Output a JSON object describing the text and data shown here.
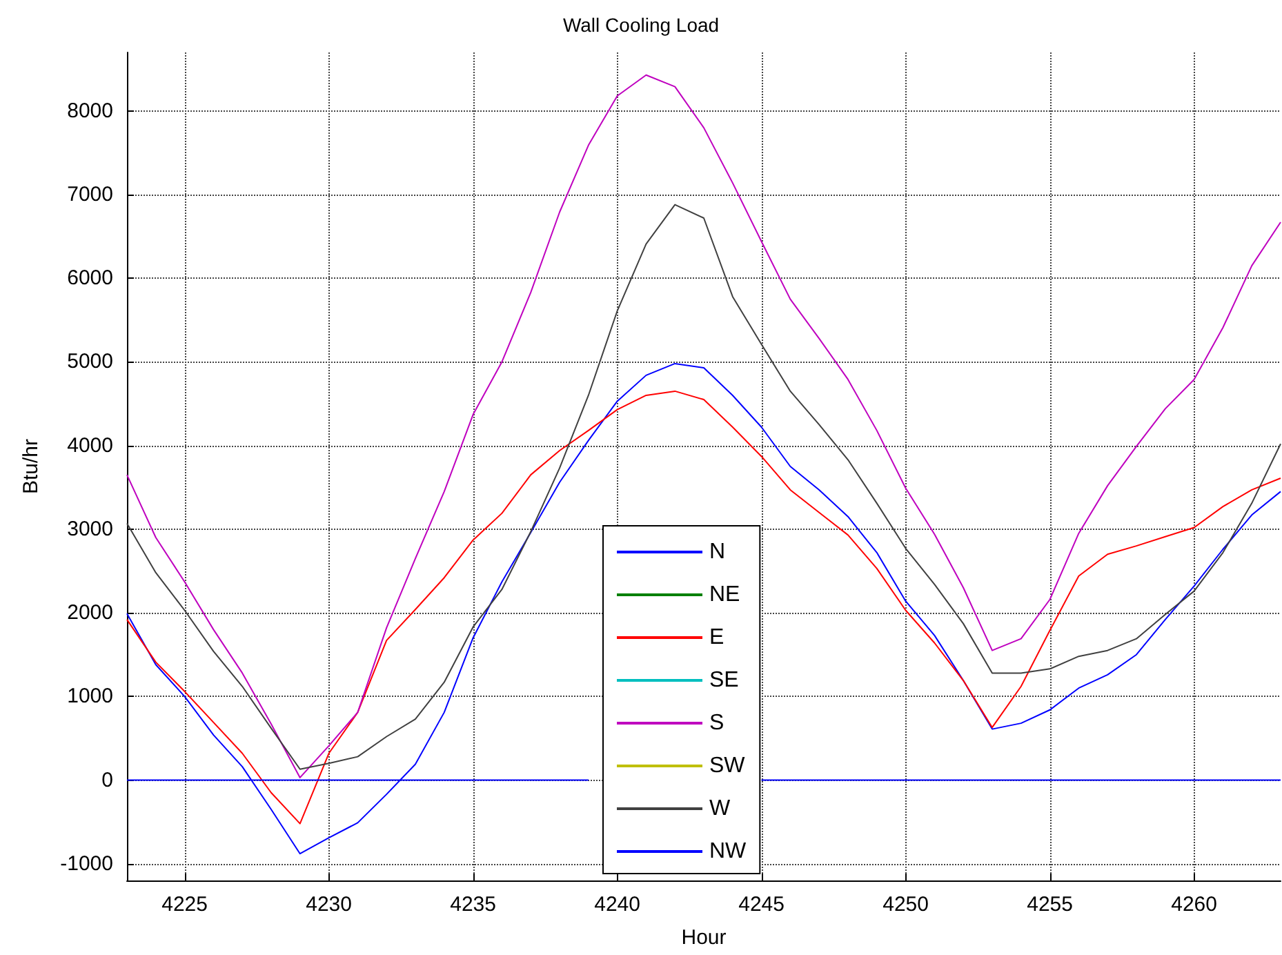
{
  "chart_data": {
    "type": "line",
    "title": "Wall Cooling Load",
    "xlabel": "Hour",
    "ylabel": "Btu/hr",
    "x": [
      4223,
      4224,
      4225,
      4226,
      4227,
      4228,
      4229,
      4230,
      4231,
      4232,
      4233,
      4234,
      4235,
      4236,
      4237,
      4238,
      4239,
      4240,
      4241,
      4242,
      4243,
      4244,
      4245,
      4246,
      4247,
      4248,
      4249,
      4250,
      4251,
      4252,
      4253,
      4254,
      4255,
      4256,
      4257,
      4258,
      4259,
      4260,
      4261,
      4262,
      4263
    ],
    "xlim": [
      4223,
      4263
    ],
    "xticks": [
      4225,
      4230,
      4235,
      4240,
      4245,
      4250,
      4255,
      4260
    ],
    "ylim": [
      -1200,
      8700
    ],
    "yticks": [
      -1000,
      0,
      1000,
      2000,
      3000,
      4000,
      5000,
      6000,
      7000,
      8000
    ],
    "grid": true,
    "legend": "bottom",
    "marker": "none",
    "line_style": "solid",
    "series": [
      {
        "name": "N",
        "color": "#0000ff",
        "values": [
          1990,
          1380,
          1000,
          540,
          160,
          -350,
          -880,
          -690,
          -510,
          -170,
          190,
          810,
          1700,
          2370,
          2960,
          3560,
          4060,
          4530,
          4840,
          4980,
          4930,
          4600,
          4220,
          3750,
          3470,
          3150,
          2720,
          2140,
          1730,
          1190,
          610,
          680,
          840,
          1100,
          1260,
          1500,
          1920,
          2320,
          2760,
          3170,
          3450
        ]
      },
      {
        "name": "NE",
        "color": "#008000",
        "values": [
          null,
          null,
          null,
          null,
          null,
          null,
          null,
          null,
          null,
          null,
          null,
          null,
          null,
          null,
          null,
          null,
          null,
          null,
          null,
          null,
          null,
          null,
          null,
          null,
          null,
          null,
          null,
          null,
          null,
          null,
          null,
          null,
          null,
          null,
          null,
          null,
          null,
          null,
          null,
          null,
          null
        ]
      },
      {
        "name": "E",
        "color": "#ff0000",
        "values": [
          1920,
          1410,
          1060,
          690,
          320,
          -150,
          -520,
          320,
          810,
          1670,
          2040,
          2420,
          2870,
          3190,
          3650,
          3940,
          4180,
          4430,
          4600,
          4650,
          4550,
          4220,
          3870,
          3470,
          3200,
          2930,
          2530,
          2030,
          1640,
          1190,
          630,
          1120,
          1790,
          2440,
          2700,
          2800,
          2910,
          3020,
          3270,
          3470,
          3610
        ]
      },
      {
        "name": "SE",
        "color": "#00bfbf",
        "values": [
          null,
          null,
          null,
          null,
          null,
          null,
          null,
          null,
          null,
          null,
          null,
          null,
          null,
          null,
          null,
          null,
          null,
          null,
          null,
          null,
          null,
          null,
          null,
          null,
          null,
          null,
          null,
          null,
          null,
          null,
          null,
          null,
          null,
          null,
          null,
          null,
          null,
          null,
          null,
          null,
          null
        ]
      },
      {
        "name": "S",
        "color": "#bf00bf",
        "values": [
          3650,
          2900,
          2370,
          1800,
          1280,
          670,
          30,
          410,
          810,
          1820,
          2650,
          3450,
          4370,
          5000,
          5830,
          6790,
          7590,
          8180,
          8430,
          8290,
          7800,
          7140,
          6440,
          5750,
          5280,
          4790,
          4180,
          3490,
          2940,
          2300,
          1550,
          1690,
          2160,
          2950,
          3520,
          3990,
          4440,
          4790,
          5410,
          6150,
          6670
        ]
      },
      {
        "name": "SW",
        "color": "#bfbf00",
        "values": [
          null,
          null,
          null,
          null,
          null,
          null,
          null,
          null,
          null,
          null,
          null,
          null,
          null,
          null,
          null,
          null,
          null,
          null,
          null,
          null,
          null,
          null,
          null,
          null,
          null,
          null,
          null,
          null,
          null,
          null,
          null,
          null,
          null,
          null,
          null,
          null,
          null,
          null,
          null,
          null,
          null
        ]
      },
      {
        "name": "W",
        "color": "#404040",
        "values": [
          3070,
          2480,
          2030,
          1540,
          1120,
          620,
          130,
          200,
          280,
          520,
          730,
          1170,
          1830,
          2280,
          2970,
          3730,
          4600,
          5610,
          6410,
          6880,
          6720,
          5780,
          5210,
          4650,
          4250,
          3830,
          3310,
          2770,
          2340,
          1870,
          1280,
          1280,
          1330,
          1480,
          1550,
          1690,
          1980,
          2260,
          2720,
          3310,
          4020
        ]
      },
      {
        "name": "NW",
        "color": "#0000ff",
        "values": [
          0,
          0,
          0,
          0,
          0,
          0,
          0,
          0,
          0,
          0,
          0,
          0,
          0,
          0,
          0,
          0,
          0,
          null,
          null,
          null,
          null,
          null,
          0,
          0,
          0,
          0,
          0,
          0,
          0,
          0,
          0,
          0,
          0,
          0,
          0,
          0,
          0,
          0,
          0,
          0,
          0
        ]
      }
    ]
  }
}
